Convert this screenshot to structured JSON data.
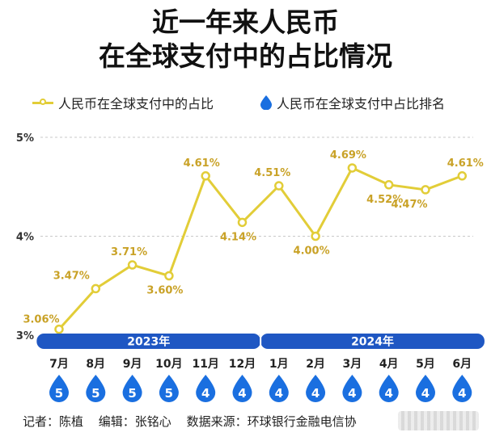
{
  "title_line1": "近一年来人民币",
  "title_line2": "在全球支付中的占比情况",
  "legend": {
    "share_label": "人民币在全球支付中的占比",
    "rank_label": "人民币在全球支付中占比排名"
  },
  "colors": {
    "line": "#e2cd38",
    "label": "#c9a227",
    "blue": "#1f57c3",
    "drop": "#1a6fe0"
  },
  "footer": {
    "reporter": "记者：陈植",
    "editor": "编辑：张铭心",
    "source": "数据来源：环球银行金融电信协"
  },
  "chart_data": {
    "type": "line",
    "title": "近一年来人民币在全球支付中的占比情况",
    "categories": [
      "7月",
      "8月",
      "9月",
      "10月",
      "11月",
      "12月",
      "1月",
      "2月",
      "3月",
      "4月",
      "5月",
      "6月"
    ],
    "year_groups": [
      {
        "label": "2023年",
        "start": 0,
        "end": 5
      },
      {
        "label": "2024年",
        "start": 6,
        "end": 11
      }
    ],
    "series": [
      {
        "name": "人民币在全球支付中的占比",
        "values": [
          3.06,
          3.47,
          3.71,
          3.6,
          4.61,
          4.14,
          4.51,
          4.0,
          4.69,
          4.52,
          4.47,
          4.61
        ],
        "labels": [
          "3.06%",
          "3.47%",
          "3.71%",
          "3.60%",
          "4.61%",
          "4.14%",
          "4.51%",
          "4.00%",
          "4.69%",
          "4.52%",
          "4.47%",
          "4.61%"
        ]
      },
      {
        "name": "人民币在全球支付中占比排名",
        "values": [
          5,
          5,
          5,
          5,
          4,
          4,
          4,
          4,
          4,
          4,
          4,
          4
        ]
      }
    ],
    "ylim": [
      3,
      5
    ],
    "yticks": [
      {
        "value": 3,
        "label": "3%"
      },
      {
        "value": 4,
        "label": "4%"
      },
      {
        "value": 5,
        "label": "5%"
      }
    ],
    "grid": true
  }
}
